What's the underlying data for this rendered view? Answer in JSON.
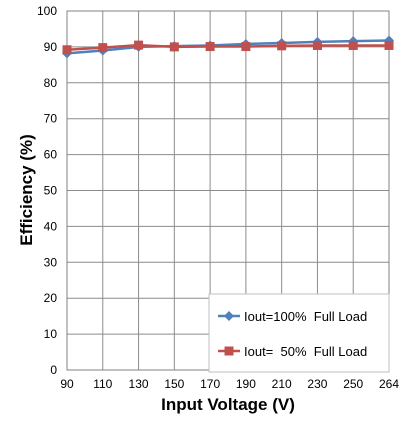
{
  "chart_data": {
    "type": "line",
    "title": "",
    "xlabel": "Input Voltage (V)",
    "ylabel": "Efficiency (%)",
    "categories": [
      "90",
      "110",
      "130",
      "150",
      "170",
      "190",
      "210",
      "230",
      "250",
      "264"
    ],
    "ylim": [
      0,
      100
    ],
    "yticks": [
      "0",
      "10",
      "20",
      "30",
      "40",
      "50",
      "60",
      "70",
      "80",
      "90",
      "100"
    ],
    "grid": true,
    "legend_position": "bottom-right",
    "series": [
      {
        "name": "Iout=100%  Full Load",
        "marker": "diamond",
        "color": "#4f81bd",
        "values": [
          88.2,
          89.0,
          90.0,
          90.2,
          90.4,
          90.8,
          91.1,
          91.4,
          91.6,
          91.8
        ]
      },
      {
        "name": "Iout=  50%  Full Load",
        "marker": "square",
        "color": "#c0504d",
        "values": [
          89.2,
          89.8,
          90.5,
          90.0,
          90.1,
          90.1,
          90.3,
          90.4,
          90.4,
          90.4
        ]
      }
    ]
  }
}
